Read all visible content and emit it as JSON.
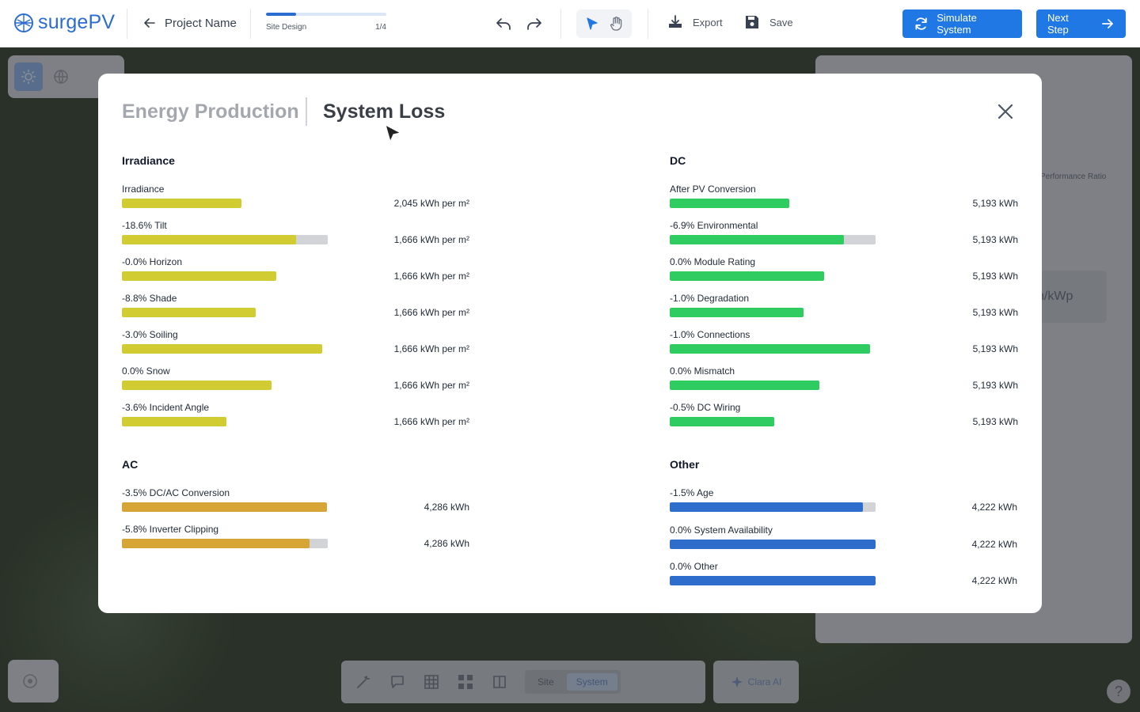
{
  "header": {
    "logo_text": "surgePV",
    "project_name": "Project Name",
    "progress": {
      "label": "Site Design",
      "step": "1/4",
      "fraction": 0.25
    },
    "export_label": "Export",
    "save_label": "Save",
    "simulate_label": "Simulate System",
    "next_label": "Next Step",
    "accent_color": "#1f78e4"
  },
  "background": {
    "panel_text_1": "Performance Ratio",
    "panel_text_2": "h/kWp",
    "bottom_toolbar": {
      "site_label": "Site",
      "system_label": "System"
    },
    "clara_label": "Clara AI",
    "help_label": "?"
  },
  "modal": {
    "tabs": [
      {
        "label": "Energy Production",
        "active": false
      },
      {
        "label": "System Loss",
        "active": true
      }
    ],
    "sections": [
      {
        "title": "Irradiance",
        "color": "#d2cc33",
        "rows": [
          {
            "label": "Irradiance",
            "value": "2,045 kWh per m²",
            "fill": 0.58,
            "track": false
          },
          {
            "label": "-18.6% Tilt",
            "value": "1,666 kWh per m²",
            "fill": 0.846,
            "track": true
          },
          {
            "label": "-0.0% Horizon",
            "value": "1,666 kWh per m²",
            "fill": 0.75,
            "track": false
          },
          {
            "label": "-8.8% Shade",
            "value": "1,666 kWh per m²",
            "fill": 0.65,
            "track": false
          },
          {
            "label": "-3.0% Soiling",
            "value": "1,666 kWh per m²",
            "fill": 0.973,
            "track": false
          },
          {
            "label": "0.0% Snow",
            "value": "1,666 kWh per m²",
            "fill": 0.727,
            "track": false
          },
          {
            "label": "-3.6% Incident Angle",
            "value": "1,666 kWh per m²",
            "fill": 0.508,
            "track": false
          }
        ]
      },
      {
        "title": "DC",
        "color": "#2fcc62",
        "rows": [
          {
            "label": "After PV Conversion",
            "value": "5,193 kWh",
            "fill": 0.58,
            "track": false
          },
          {
            "label": "-6.9% Environmental",
            "value": "5,193 kWh",
            "fill": 0.846,
            "track": true
          },
          {
            "label": "0.0% Module Rating",
            "value": "5,193 kWh",
            "fill": 0.75,
            "track": false
          },
          {
            "label": "-1.0% Degradation",
            "value": "5,193 kWh",
            "fill": 0.65,
            "track": false
          },
          {
            "label": "-1.0% Connections",
            "value": "5,193 kWh",
            "fill": 0.973,
            "track": false
          },
          {
            "label": "0.0% Mismatch",
            "value": "5,193 kWh",
            "fill": 0.727,
            "track": false
          },
          {
            "label": "-0.5% DC Wiring",
            "value": "5,193 kWh",
            "fill": 0.508,
            "track": false
          }
        ]
      },
      {
        "title": "AC",
        "color": "#d6a536",
        "rows": [
          {
            "label": "-3.5% DC/AC Conversion",
            "value": "4,286 kWh",
            "fill": 0.996,
            "track": false
          },
          {
            "label": "-5.8% Inverter Clipping",
            "value": "4,286 kWh",
            "fill": 0.912,
            "track": true
          }
        ]
      },
      {
        "title": "Other",
        "color": "#2f6dcc",
        "rows": [
          {
            "label": "-1.5% Age",
            "value": "4,222 kWh",
            "fill": 0.938,
            "track": true
          },
          {
            "label": "0.0% System Availability",
            "value": "4,222 kWh",
            "fill": 1.0,
            "track": false
          },
          {
            "label": "0.0% Other",
            "value": "4,222 kWh",
            "fill": 1.0,
            "track": false
          }
        ]
      }
    ]
  }
}
